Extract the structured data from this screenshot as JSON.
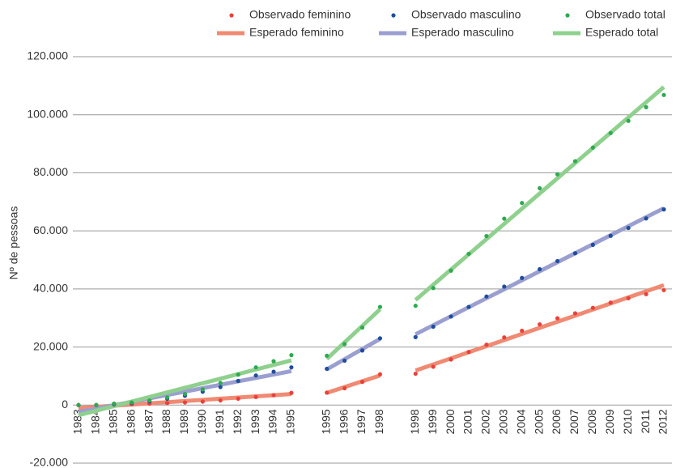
{
  "chart_data": {
    "type": "line",
    "y_label": "Nº de pessoas",
    "categories": [
      "1983",
      "1984",
      "1985",
      "1986",
      "1987",
      "1988",
      "1989",
      "1990",
      "1991",
      "1992",
      "1993",
      "1994",
      "1995",
      null,
      "1995",
      "1996",
      "1997",
      "1998",
      null,
      "1998",
      "1999",
      "2000",
      "2001",
      "2002",
      "2003",
      "2004",
      "2005",
      "2006",
      "2007",
      "2008",
      "2009",
      "2010",
      "2011",
      "2012"
    ],
    "ylim": [
      -20000,
      120000
    ],
    "yticks": [
      {
        "value": -20000,
        "label": "-20.000"
      },
      0,
      {
        "value": 20000,
        "label": "20.000"
      },
      {
        "value": 40000,
        "label": "40.000"
      },
      {
        "value": 60000,
        "label": "60.000"
      },
      {
        "value": 80000,
        "label": "80.000"
      },
      {
        "value": 100000,
        "label": "100.000"
      },
      {
        "value": 120000,
        "label": "120.000"
      }
    ],
    "grid": true,
    "legend": "top",
    "series": [
      {
        "name": "Observado feminino",
        "color": "#e8423a",
        "style": "markers",
        "values": [
          0,
          0,
          200,
          300,
          500,
          700,
          900,
          1200,
          1600,
          2200,
          2800,
          3400,
          4200,
          null,
          4300,
          5800,
          8000,
          10600,
          null,
          10800,
          13200,
          15700,
          18300,
          20800,
          23300,
          25600,
          27800,
          29900,
          31600,
          33500,
          35300,
          36800,
          38200,
          39600
        ]
      },
      {
        "name": "Observado masculino",
        "color": "#1f4e9c",
        "style": "markers",
        "values": [
          0,
          0,
          300,
          700,
          1300,
          2200,
          3200,
          4600,
          6200,
          8300,
          10200,
          11500,
          13000,
          null,
          12500,
          15300,
          18800,
          23000,
          null,
          23400,
          27000,
          30500,
          33800,
          37400,
          40800,
          43800,
          46800,
          49600,
          52300,
          55200,
          58300,
          61000,
          64300,
          67400
        ]
      },
      {
        "name": "Observado total",
        "color": "#2eaa4f",
        "style": "markers",
        "values": [
          0,
          0,
          500,
          900,
          1600,
          2600,
          3800,
          5400,
          7600,
          10500,
          13000,
          15100,
          17200,
          null,
          17000,
          21000,
          26700,
          33800,
          null,
          34200,
          40300,
          46300,
          52100,
          58200,
          64200,
          69600,
          74700,
          79500,
          84000,
          88700,
          93700,
          97900,
          102600,
          106800
        ]
      },
      {
        "name": "Esperado feminino",
        "color": "#f08a73",
        "style": "line",
        "values": [
          -1000,
          -600,
          -200,
          200,
          600,
          1000,
          1400,
          1800,
          2200,
          2600,
          3000,
          3400,
          3800,
          null,
          4200,
          6200,
          8200,
          10200,
          null,
          11900,
          14000,
          16100,
          18200,
          20300,
          22400,
          24500,
          26600,
          28700,
          30800,
          32900,
          35000,
          37100,
          39200,
          41300
        ]
      },
      {
        "name": "Esperado masculino",
        "color": "#9b9fd0",
        "style": "line",
        "values": [
          -2400,
          -1225,
          -50,
          1125,
          2300,
          3475,
          4650,
          5825,
          7000,
          8175,
          9350,
          10525,
          11700,
          null,
          12300,
          15800,
          19300,
          22800,
          null,
          24400,
          27500,
          30600,
          33700,
          36800,
          39900,
          43000,
          46100,
          49200,
          52300,
          55400,
          58500,
          61600,
          64700,
          67800
        ]
      },
      {
        "name": "Esperado total",
        "color": "#8fd08f",
        "style": "line",
        "values": [
          -3500,
          -1925,
          -350,
          1225,
          2800,
          4375,
          5950,
          7525,
          9100,
          10675,
          12250,
          13825,
          15400,
          null,
          15900,
          21600,
          27300,
          33000,
          null,
          36200,
          41440,
          46680,
          51920,
          57160,
          62400,
          67640,
          72880,
          78120,
          83360,
          88600,
          93840,
          99080,
          104320,
          109560
        ]
      }
    ]
  }
}
